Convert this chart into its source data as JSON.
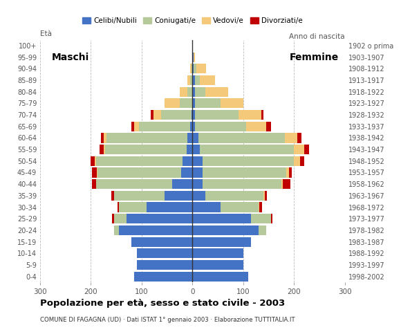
{
  "age_groups": [
    "0-4",
    "5-9",
    "10-14",
    "15-19",
    "20-24",
    "25-29",
    "30-34",
    "35-39",
    "40-44",
    "45-49",
    "50-54",
    "55-59",
    "60-64",
    "65-69",
    "70-74",
    "75-79",
    "80-84",
    "85-89",
    "90-94",
    "95-99",
    "100+"
  ],
  "birth_years": [
    "1998-2002",
    "1993-1997",
    "1988-1992",
    "1983-1987",
    "1978-1982",
    "1973-1977",
    "1968-1972",
    "1963-1967",
    "1958-1962",
    "1953-1957",
    "1948-1952",
    "1943-1947",
    "1938-1942",
    "1933-1937",
    "1928-1932",
    "1923-1927",
    "1918-1922",
    "1913-1917",
    "1908-1912",
    "1903-1907",
    "1902 o prima"
  ],
  "male_celibe": [
    115,
    110,
    110,
    120,
    145,
    130,
    90,
    55,
    40,
    22,
    20,
    12,
    10,
    5,
    2,
    0,
    0,
    0,
    0,
    0,
    0
  ],
  "male_coniugato": [
    0,
    0,
    0,
    0,
    10,
    25,
    55,
    100,
    150,
    165,
    170,
    160,
    160,
    100,
    60,
    25,
    10,
    5,
    2,
    0,
    0
  ],
  "male_vedovo": [
    0,
    0,
    0,
    0,
    0,
    0,
    0,
    0,
    0,
    1,
    2,
    3,
    5,
    10,
    15,
    30,
    15,
    5,
    2,
    0,
    0
  ],
  "male_divorziato": [
    0,
    0,
    0,
    0,
    0,
    3,
    3,
    5,
    8,
    10,
    8,
    8,
    5,
    5,
    5,
    0,
    0,
    0,
    0,
    0,
    0
  ],
  "female_celibe": [
    110,
    100,
    100,
    115,
    130,
    115,
    55,
    25,
    20,
    20,
    20,
    15,
    12,
    5,
    5,
    5,
    5,
    5,
    2,
    2,
    0
  ],
  "female_coniugato": [
    0,
    0,
    0,
    0,
    15,
    40,
    75,
    115,
    155,
    165,
    180,
    185,
    170,
    100,
    85,
    50,
    20,
    10,
    5,
    0,
    0
  ],
  "female_vedovo": [
    0,
    0,
    0,
    0,
    0,
    0,
    2,
    2,
    3,
    5,
    12,
    20,
    25,
    40,
    45,
    45,
    45,
    30,
    20,
    3,
    0
  ],
  "female_divorziato": [
    0,
    0,
    0,
    0,
    0,
    2,
    5,
    5,
    15,
    5,
    8,
    10,
    8,
    10,
    5,
    0,
    0,
    0,
    0,
    0,
    0
  ],
  "colors": {
    "celibe": "#4472c4",
    "coniugato": "#b5c99a",
    "vedovo": "#f5c97a",
    "divorziato": "#c00000"
  },
  "title": "Popolazione per età, sesso e stato civile - 2003",
  "subtitle": "COMUNE DI FAGAGNA (UD) · Dati ISTAT 1° gennaio 2003 · Elaborazione TUTTITALIA.IT",
  "xlim": 300,
  "legend_labels": [
    "Celibi/Nubili",
    "Coniugati/e",
    "Vedovi/e",
    "Divorziati/e"
  ],
  "ylabel_left": "Età",
  "ylabel_right": "Anno di nascita",
  "xticks": [
    -300,
    -200,
    -100,
    0,
    100,
    200,
    300
  ]
}
